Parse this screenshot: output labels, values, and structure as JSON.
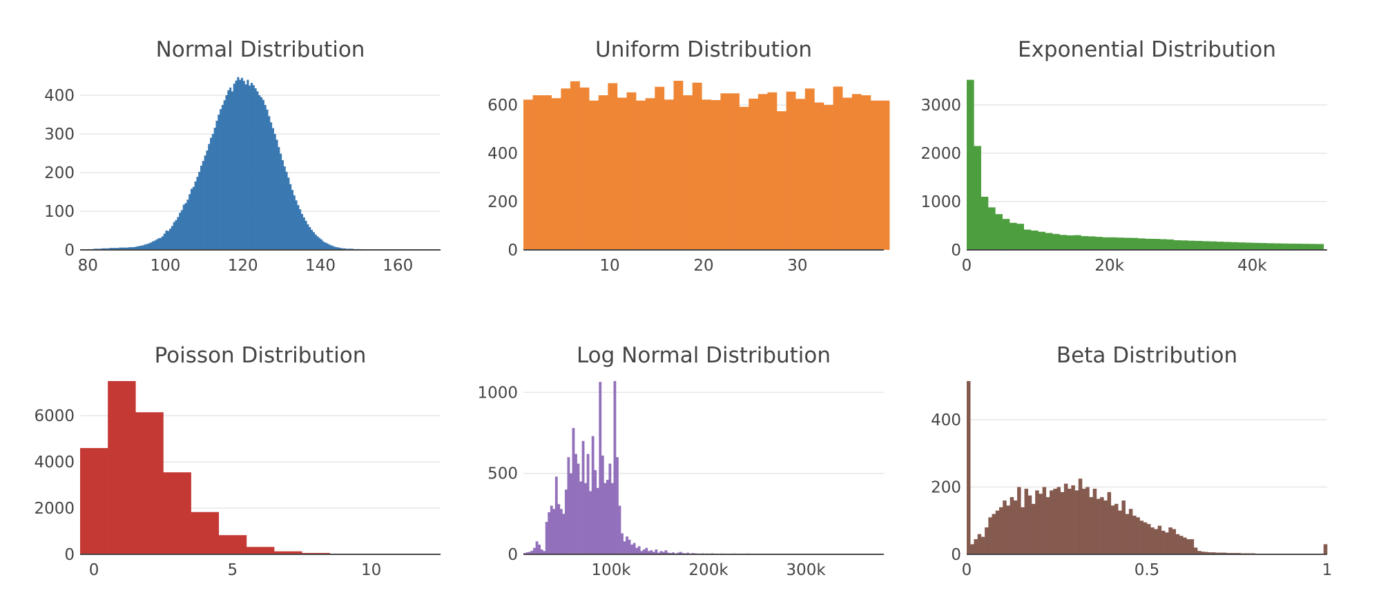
{
  "chart_data": [
    {
      "type": "bar",
      "title": "Normal Distribution",
      "color": "#3a78b2",
      "xlim": [
        78,
        171
      ],
      "ylim": [
        0,
        450
      ],
      "bin_start": 78,
      "bin_width": 0.5,
      "values": [
        1,
        1,
        1,
        1,
        2,
        2,
        2,
        3,
        3,
        3,
        3,
        4,
        4,
        4,
        4,
        5,
        5,
        5,
        5,
        5,
        6,
        6,
        6,
        6,
        6,
        7,
        7,
        7,
        8,
        9,
        10,
        11,
        12,
        14,
        15,
        17,
        19,
        22,
        24,
        27,
        30,
        31,
        35,
        42,
        50,
        49,
        55,
        62,
        72,
        77,
        85,
        96,
        103,
        117,
        121,
        130,
        144,
        158,
        163,
        177,
        189,
        202,
        218,
        230,
        244,
        257,
        274,
        290,
        300,
        316,
        334,
        350,
        364,
        375,
        387,
        400,
        413,
        420,
        410,
        430,
        438,
        447,
        440,
        445,
        437,
        428,
        440,
        425,
        432,
        426,
        418,
        410,
        400,
        395,
        388,
        375,
        363,
        346,
        330,
        315,
        300,
        285,
        266,
        249,
        232,
        216,
        202,
        187,
        170,
        155,
        141,
        128,
        116,
        105,
        93,
        84,
        75,
        66,
        59,
        52,
        46,
        40,
        35,
        31,
        27,
        22,
        19,
        17,
        14,
        12,
        10,
        8,
        7,
        6,
        5,
        4,
        4,
        3,
        3,
        3,
        3,
        2,
        2,
        2,
        2,
        1,
        1,
        1,
        1,
        1,
        1,
        1,
        1,
        1,
        1,
        1,
        1,
        1,
        1,
        1,
        1,
        1,
        1,
        1,
        1,
        1,
        1,
        1,
        1,
        1,
        1,
        1,
        1,
        1,
        1,
        1,
        1,
        1,
        1,
        1,
        1,
        1,
        1,
        1,
        1,
        1
      ],
      "x_ticks": [
        80,
        100,
        120,
        140,
        160
      ],
      "y_ticks": [
        0,
        100,
        200,
        300,
        400
      ]
    },
    {
      "type": "bar",
      "title": "Uniform Distribution",
      "color": "#ef8636",
      "xlim": [
        0.8,
        39.2
      ],
      "ylim": [
        0,
        720
      ],
      "bin_start": 0.8,
      "bin_width": 1,
      "values": [
        622,
        640,
        640,
        628,
        668,
        698,
        672,
        618,
        640,
        690,
        630,
        652,
        618,
        628,
        675,
        622,
        700,
        640,
        692,
        622,
        620,
        648,
        648,
        592,
        626,
        645,
        652,
        574,
        655,
        625,
        668,
        610,
        600,
        676,
        630,
        645,
        640,
        618,
        618
      ],
      "x_ticks": [
        10,
        20,
        30
      ],
      "y_ticks": [
        0,
        200,
        400,
        600
      ]
    },
    {
      "type": "bar",
      "title": "Exponential Distribution",
      "color": "#4d9e3f",
      "xlim": [
        0,
        50500
      ],
      "ylim": [
        0,
        3600
      ],
      "bin_start": 0,
      "bin_width": 1000,
      "values": [
        3520,
        2150,
        1100,
        880,
        740,
        640,
        560,
        540,
        420,
        400,
        375,
        350,
        330,
        310,
        300,
        305,
        285,
        280,
        270,
        260,
        260,
        255,
        250,
        248,
        238,
        230,
        228,
        222,
        216,
        200,
        196,
        190,
        186,
        180,
        176,
        170,
        165,
        160,
        155,
        150,
        146,
        142,
        138,
        135,
        132,
        130,
        128,
        126,
        124,
        122
      ],
      "x_ticks": [
        0,
        20000,
        40000
      ],
      "x_tick_labels": [
        "0",
        "20k",
        "40k"
      ],
      "y_ticks": [
        0,
        1000,
        2000,
        3000
      ]
    },
    {
      "type": "bar",
      "title": "Poisson Distribution",
      "color": "#c43934",
      "xlim": [
        -0.5,
        12.5
      ],
      "ylim": [
        0,
        7500
      ],
      "bin_start": -0.5,
      "bin_width": 1,
      "values": [
        4600,
        7500,
        6150,
        3550,
        1830,
        830,
        320,
        130,
        60,
        30,
        10,
        5,
        2
      ],
      "x_ticks": [
        0,
        5,
        10
      ],
      "y_ticks": [
        0,
        2000,
        4000,
        6000
      ]
    },
    {
      "type": "bar",
      "title": "Log Normal Distribution",
      "color": "#9370bb",
      "xlim": [
        10000,
        380000
      ],
      "ylim": [
        0,
        1070
      ],
      "bin_start": 10000,
      "bin_width": 2500,
      "values": [
        8,
        12,
        15,
        22,
        40,
        80,
        60,
        30,
        20,
        200,
        260,
        300,
        280,
        480,
        310,
        280,
        250,
        400,
        600,
        500,
        780,
        620,
        560,
        450,
        700,
        440,
        620,
        390,
        730,
        520,
        410,
        1065,
        610,
        440,
        460,
        560,
        440,
        1070,
        600,
        300,
        130,
        80,
        110,
        90,
        60,
        70,
        40,
        50,
        20,
        30,
        40,
        20,
        25,
        15,
        30,
        10,
        20,
        15,
        25,
        10,
        8,
        12,
        5,
        10,
        15,
        8,
        6,
        10,
        4,
        8,
        6,
        5,
        4,
        6,
        3,
        5,
        4,
        6,
        3,
        4,
        3,
        5,
        3,
        2,
        4,
        3,
        5,
        2,
        3,
        4,
        2,
        3,
        5,
        2,
        3,
        4,
        2,
        3,
        2,
        4,
        3,
        2,
        3,
        2,
        4,
        2,
        3,
        2,
        2,
        3,
        2,
        2,
        4,
        2,
        3,
        2,
        2,
        3,
        2,
        2,
        3,
        2,
        2,
        3,
        2,
        3,
        2,
        2,
        3,
        2,
        2,
        3,
        2,
        2,
        3,
        2,
        2,
        3,
        2,
        2,
        3,
        2,
        2,
        3,
        2,
        2,
        3,
        2
      ],
      "x_ticks": [
        100000,
        200000,
        300000
      ],
      "x_tick_labels": [
        "100k",
        "200k",
        "300k"
      ],
      "y_ticks": [
        0,
        500,
        1000
      ]
    },
    {
      "type": "bar",
      "title": "Beta Distribution",
      "color": "#855a4f",
      "xlim": [
        0,
        1
      ],
      "ylim": [
        0,
        515
      ],
      "bin_start": 0,
      "bin_width": 0.01,
      "values": [
        515,
        30,
        45,
        60,
        52,
        80,
        110,
        120,
        130,
        140,
        160,
        145,
        170,
        160,
        200,
        140,
        195,
        175,
        150,
        190,
        180,
        200,
        170,
        190,
        195,
        200,
        185,
        210,
        195,
        205,
        190,
        225,
        195,
        200,
        170,
        195,
        165,
        170,
        160,
        185,
        145,
        150,
        130,
        160,
        120,
        135,
        115,
        110,
        100,
        95,
        90,
        80,
        75,
        85,
        70,
        65,
        80,
        75,
        60,
        55,
        50,
        45,
        45,
        20,
        10,
        8,
        7,
        6,
        6,
        5,
        5,
        5,
        4,
        4,
        4,
        4,
        3,
        3,
        3,
        3,
        2,
        2,
        2,
        2,
        2,
        2,
        2,
        2,
        1,
        1,
        1,
        1,
        1,
        1,
        1,
        1,
        1,
        1,
        1,
        30
      ],
      "x_ticks": [
        0,
        0.5,
        1
      ],
      "y_ticks": [
        0,
        200,
        400
      ]
    }
  ]
}
